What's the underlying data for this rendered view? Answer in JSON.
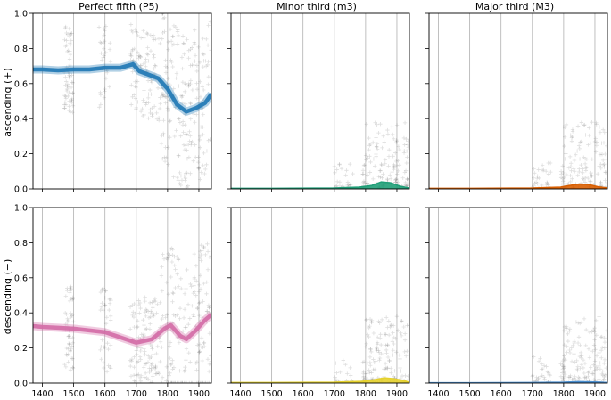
{
  "chart_data": [
    {
      "type": "line",
      "row": 0,
      "col": 0,
      "title": "Perfect fifth (P5)",
      "ylabel": "ascending (+)",
      "ylim": [
        0,
        1
      ],
      "xlim": [
        1370,
        1940
      ],
      "grid_x": [
        1400,
        1500,
        1600,
        1700,
        1800,
        1900
      ],
      "color": "#1f77b4",
      "series": [
        {
          "x": [
            1370,
            1400,
            1450,
            1500,
            1550,
            1600,
            1650,
            1690,
            1710,
            1740,
            1770,
            1800,
            1830,
            1860,
            1890,
            1920,
            1940
          ],
          "y": [
            0.68,
            0.68,
            0.675,
            0.68,
            0.68,
            0.69,
            0.69,
            0.71,
            0.67,
            0.65,
            0.63,
            0.57,
            0.48,
            0.44,
            0.46,
            0.49,
            0.54
          ]
        }
      ]
    },
    {
      "type": "area",
      "row": 0,
      "col": 1,
      "title": "Minor third (m3)",
      "ylim": [
        0,
        1
      ],
      "xlim": [
        1370,
        1940
      ],
      "grid_x": [
        1400,
        1500,
        1600,
        1700,
        1800,
        1900
      ],
      "color": "#1f9e77",
      "series": [
        {
          "x": [
            1370,
            1500,
            1700,
            1780,
            1820,
            1850,
            1880,
            1910,
            1940
          ],
          "y": [
            0.003,
            0.003,
            0.005,
            0.01,
            0.02,
            0.04,
            0.035,
            0.015,
            0.005
          ]
        }
      ]
    },
    {
      "type": "area",
      "row": 0,
      "col": 2,
      "title": "Major third (M3)",
      "ylim": [
        0,
        1
      ],
      "xlim": [
        1370,
        1940
      ],
      "grid_x": [
        1400,
        1500,
        1600,
        1700,
        1800,
        1900
      ],
      "color": "#d95f02",
      "series": [
        {
          "x": [
            1370,
            1500,
            1700,
            1790,
            1820,
            1850,
            1880,
            1910,
            1940
          ],
          "y": [
            0.003,
            0.003,
            0.005,
            0.01,
            0.02,
            0.028,
            0.025,
            0.012,
            0.005
          ]
        }
      ]
    },
    {
      "type": "line",
      "row": 1,
      "col": 0,
      "ylabel": "descending (−)",
      "ylim": [
        0,
        1
      ],
      "xlim": [
        1370,
        1940
      ],
      "grid_x": [
        1400,
        1500,
        1600,
        1700,
        1800,
        1900
      ],
      "color": "#d36ba6",
      "series": [
        {
          "x": [
            1370,
            1400,
            1450,
            1500,
            1550,
            1600,
            1650,
            1700,
            1750,
            1790,
            1810,
            1840,
            1860,
            1890,
            1920,
            1940
          ],
          "y": [
            0.325,
            0.32,
            0.315,
            0.31,
            0.3,
            0.29,
            0.26,
            0.23,
            0.25,
            0.31,
            0.33,
            0.27,
            0.25,
            0.3,
            0.36,
            0.39
          ]
        }
      ]
    },
    {
      "type": "area",
      "row": 1,
      "col": 1,
      "ylim": [
        0,
        1
      ],
      "xlim": [
        1370,
        1940
      ],
      "grid_x": [
        1400,
        1500,
        1600,
        1700,
        1800,
        1900
      ],
      "color": "#e6d22d",
      "series": [
        {
          "x": [
            1370,
            1500,
            1700,
            1790,
            1830,
            1860,
            1890,
            1920,
            1940
          ],
          "y": [
            0.003,
            0.003,
            0.005,
            0.01,
            0.02,
            0.03,
            0.025,
            0.015,
            0.005
          ]
        }
      ]
    },
    {
      "type": "area",
      "row": 1,
      "col": 2,
      "ylim": [
        0,
        1
      ],
      "xlim": [
        1370,
        1940
      ],
      "grid_x": [
        1400,
        1500,
        1600,
        1700,
        1800,
        1900
      ],
      "color": "#4a8fd0",
      "series": [
        {
          "x": [
            1370,
            1500,
            1700,
            1800,
            1850,
            1900,
            1940
          ],
          "y": [
            0.002,
            0.002,
            0.003,
            0.005,
            0.008,
            0.006,
            0.003
          ]
        }
      ]
    }
  ],
  "axes": {
    "y_ticks": [
      0.0,
      0.2,
      0.4,
      0.6,
      0.8,
      1.0
    ],
    "y_tick_labels": [
      "0.0",
      "0.2",
      "0.4",
      "0.6",
      "0.8",
      "1.0"
    ],
    "x_ticks": [
      1400,
      1500,
      1600,
      1700,
      1800,
      1900
    ],
    "x_tick_labels": [
      "1400",
      "1500",
      "1600",
      "1700",
      "1800",
      "1900"
    ]
  },
  "colors": {
    "grid": "#b0b0b0",
    "scatter": "#000000",
    "background": "#ffffff"
  }
}
